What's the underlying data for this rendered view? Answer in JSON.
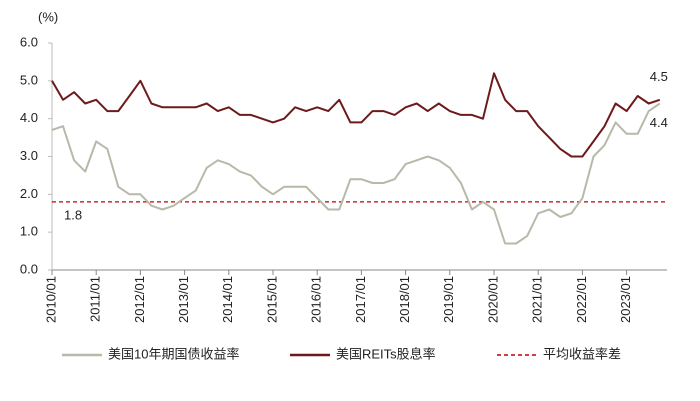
{
  "chart_data": {
    "type": "line",
    "y_axis_label": "(%)",
    "categories": [
      "2010/01",
      null,
      null,
      null,
      "2011/01",
      null,
      null,
      null,
      "2012/01",
      null,
      null,
      null,
      "2013/01",
      null,
      null,
      null,
      "2014/01",
      null,
      null,
      null,
      "2015/01",
      null,
      null,
      null,
      "2016/01",
      null,
      null,
      null,
      "2017/01",
      null,
      null,
      null,
      "2018/01",
      null,
      null,
      null,
      "2019/01",
      null,
      null,
      null,
      "2020/01",
      null,
      null,
      null,
      "2021/01",
      null,
      null,
      null,
      "2022/01",
      null,
      null,
      null,
      "2023/01",
      null,
      null,
      null
    ],
    "series": [
      {
        "name": "美国10年期国债收益率",
        "color": "#b7b9a9",
        "end_label": "4.4",
        "values": [
          3.7,
          3.8,
          2.9,
          2.6,
          3.4,
          3.2,
          2.2,
          2.0,
          2.0,
          1.7,
          1.6,
          1.7,
          1.9,
          2.1,
          2.7,
          2.9,
          2.8,
          2.6,
          2.5,
          2.2,
          2.0,
          2.2,
          2.2,
          2.2,
          1.9,
          1.6,
          1.6,
          2.4,
          2.4,
          2.3,
          2.3,
          2.4,
          2.8,
          2.9,
          3.0,
          2.9,
          2.7,
          2.3,
          1.6,
          1.8,
          1.6,
          0.7,
          0.7,
          0.9,
          1.5,
          1.6,
          1.4,
          1.5,
          1.9,
          3.0,
          3.3,
          3.9,
          3.6,
          3.6,
          4.2,
          4.4
        ]
      },
      {
        "name": "美国REITs股息率",
        "color": "#6e1a1a",
        "end_label": "4.5",
        "values": [
          5.0,
          4.5,
          4.7,
          4.4,
          4.5,
          4.2,
          4.2,
          4.6,
          5.0,
          4.4,
          4.3,
          4.3,
          4.3,
          4.3,
          4.4,
          4.2,
          4.3,
          4.1,
          4.1,
          4.0,
          3.9,
          4.0,
          4.3,
          4.2,
          4.3,
          4.2,
          4.5,
          3.9,
          3.9,
          4.2,
          4.2,
          4.1,
          4.3,
          4.4,
          4.2,
          4.4,
          4.2,
          4.1,
          4.1,
          4.0,
          5.2,
          4.5,
          4.2,
          4.2,
          3.8,
          3.5,
          3.2,
          3.0,
          3.0,
          3.4,
          3.8,
          4.4,
          4.2,
          4.6,
          4.4,
          4.5
        ]
      }
    ],
    "reference_line": {
      "name": "平均收益率差",
      "value": 1.8,
      "label": "1.8",
      "color": "#c00000",
      "dashed": true
    },
    "ylim": [
      0,
      6
    ],
    "yticks": [
      {
        "value": 0,
        "label": "0.0"
      },
      {
        "value": 1,
        "label": "1.0"
      },
      {
        "value": 2,
        "label": "2.0"
      },
      {
        "value": 3,
        "label": "3.0"
      },
      {
        "value": 4,
        "label": "4.0"
      },
      {
        "value": 5,
        "label": "5.0"
      },
      {
        "value": 6,
        "label": "6.0"
      }
    ],
    "grid": false,
    "legend": "bottom"
  }
}
